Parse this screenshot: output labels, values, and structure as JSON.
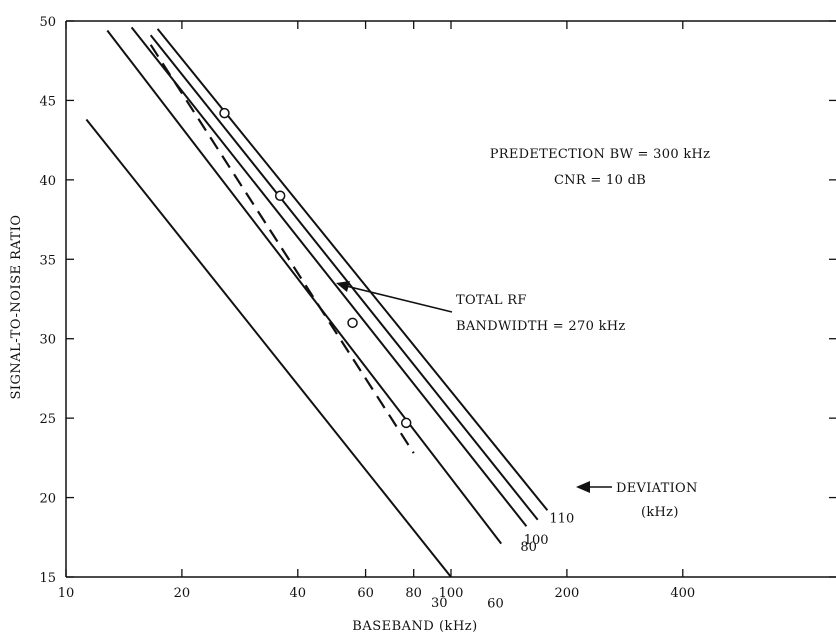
{
  "chart_data": {
    "type": "line",
    "title": "",
    "xlabel": "BASEBAND (kHz)",
    "ylabel": "SIGNAL-TO-NOISE RATIO",
    "xscale": "log",
    "xlim": [
      10,
      1000
    ],
    "ylim": [
      15,
      50
    ],
    "xticks": [
      10,
      20,
      40,
      60,
      80,
      100,
      200,
      400
    ],
    "xtick_labels": [
      "10",
      "20",
      "40",
      "60",
      "80",
      "100",
      "200",
      "400"
    ],
    "yticks": [
      15,
      20,
      25,
      30,
      35,
      40,
      45,
      50
    ],
    "ytick_labels": [
      "15",
      "20",
      "25",
      "30",
      "35",
      "40",
      "45",
      "50"
    ],
    "grid": false,
    "series": [
      {
        "name": "30",
        "style": "solid",
        "x": [
          11.3,
          100
        ],
        "y": [
          43.8,
          15
        ]
      },
      {
        "name": "60",
        "style": "solid",
        "x": [
          12.8,
          135
        ],
        "y": [
          49.4,
          17.1
        ]
      },
      {
        "name": "80",
        "style": "solid",
        "x": [
          14.8,
          157
        ],
        "y": [
          49.6,
          18.2
        ]
      },
      {
        "name": "100",
        "style": "solid",
        "x": [
          16.6,
          168
        ],
        "y": [
          49.1,
          18.6
        ]
      },
      {
        "name": "110",
        "style": "solid",
        "x": [
          17.3,
          178
        ],
        "y": [
          49.5,
          19.2
        ]
      },
      {
        "name": "",
        "style": "dashed",
        "x": [
          16.6,
          80
        ],
        "y": [
          48.5,
          22.8
        ]
      }
    ],
    "markers": {
      "x": [
        25.8,
        36,
        55.5,
        76.5
      ],
      "y": [
        44.2,
        39,
        31,
        24.7
      ]
    },
    "annotations": {
      "predetection_line1": "PREDETECTION BW = 300 kHz",
      "predetection_line2": "CNR = 10 dB",
      "total_rf_line1": "TOTAL RF",
      "total_rf_line2": "BANDWIDTH = 270 kHz",
      "deviation_label": "DEVIATION",
      "deviation_unit": "(kHz)"
    }
  }
}
